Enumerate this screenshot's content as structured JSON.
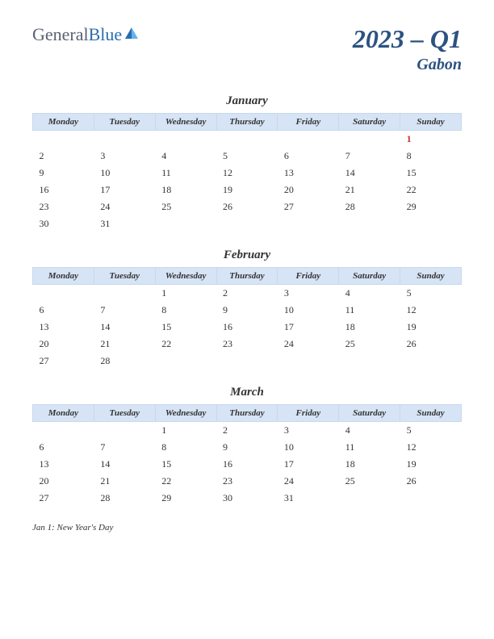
{
  "logo": {
    "text_general": "General",
    "text_blue": "Blue"
  },
  "title": {
    "main": "2023 – Q1",
    "sub": "Gabon"
  },
  "colors": {
    "header_bg": "#d6e4f5",
    "title_color": "#2c5282",
    "holiday_color": "#c53030",
    "text_color": "#333333"
  },
  "day_headers": [
    "Monday",
    "Tuesday",
    "Wednesday",
    "Thursday",
    "Friday",
    "Saturday",
    "Sunday"
  ],
  "months": [
    {
      "name": "January",
      "weeks": [
        [
          "",
          "",
          "",
          "",
          "",
          "",
          "1"
        ],
        [
          "2",
          "3",
          "4",
          "5",
          "6",
          "7",
          "8"
        ],
        [
          "9",
          "10",
          "11",
          "12",
          "13",
          "14",
          "15"
        ],
        [
          "16",
          "17",
          "18",
          "19",
          "20",
          "21",
          "22"
        ],
        [
          "23",
          "24",
          "25",
          "26",
          "27",
          "28",
          "29"
        ],
        [
          "30",
          "31",
          "",
          "",
          "",
          "",
          ""
        ]
      ],
      "holidays": [
        [
          0,
          6
        ]
      ]
    },
    {
      "name": "February",
      "weeks": [
        [
          "",
          "",
          "1",
          "2",
          "3",
          "4",
          "5"
        ],
        [
          "6",
          "7",
          "8",
          "9",
          "10",
          "11",
          "12"
        ],
        [
          "13",
          "14",
          "15",
          "16",
          "17",
          "18",
          "19"
        ],
        [
          "20",
          "21",
          "22",
          "23",
          "24",
          "25",
          "26"
        ],
        [
          "27",
          "28",
          "",
          "",
          "",
          "",
          ""
        ]
      ],
      "holidays": []
    },
    {
      "name": "March",
      "weeks": [
        [
          "",
          "",
          "1",
          "2",
          "3",
          "4",
          "5"
        ],
        [
          "6",
          "7",
          "8",
          "9",
          "10",
          "11",
          "12"
        ],
        [
          "13",
          "14",
          "15",
          "16",
          "17",
          "18",
          "19"
        ],
        [
          "20",
          "21",
          "22",
          "23",
          "24",
          "25",
          "26"
        ],
        [
          "27",
          "28",
          "29",
          "30",
          "31",
          "",
          ""
        ]
      ],
      "holidays": []
    }
  ],
  "holiday_notes": [
    "Jan 1: New Year's Day"
  ]
}
